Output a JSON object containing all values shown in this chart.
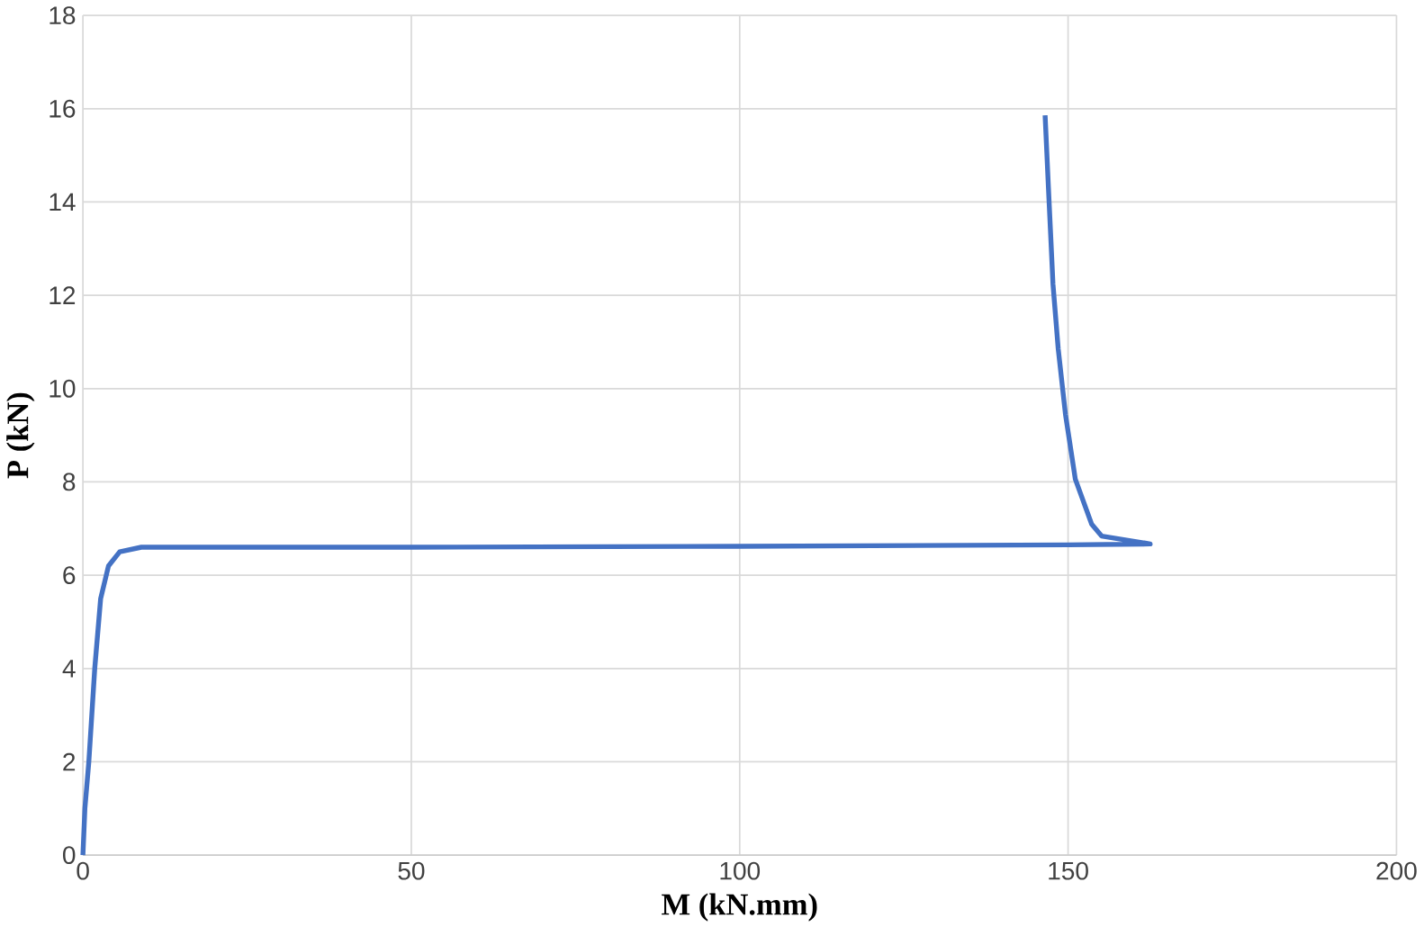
{
  "chart_data": {
    "type": "line",
    "xlabel": "M (kN.mm)",
    "ylabel": "P (kN)",
    "xlim": [
      0,
      200
    ],
    "xticks": [
      0,
      50,
      100,
      150,
      200
    ],
    "ylim": [
      0,
      18
    ],
    "yticks": [
      0,
      2,
      4,
      6,
      8,
      10,
      12,
      14,
      16,
      18
    ],
    "grid": true,
    "marker": "none",
    "line_style": "solid",
    "series": [
      {
        "color": "#4472c4",
        "x": [
          0,
          0.3,
          0.9,
          1.8,
          2.7,
          3.9,
          5.6,
          8.9,
          11.5,
          50,
          100,
          150,
          162.5,
          155.1,
          153.6,
          151.1,
          149.6,
          148.5,
          147.7,
          147.0,
          146.5
        ],
        "values": [
          0,
          1.0,
          2.0,
          4.0,
          5.5,
          6.2,
          6.5,
          6.6,
          6.6,
          6.6,
          6.62,
          6.65,
          6.67,
          6.84,
          7.09,
          8.06,
          9.45,
          10.85,
          12.24,
          14.33,
          15.86
        ]
      }
    ]
  }
}
